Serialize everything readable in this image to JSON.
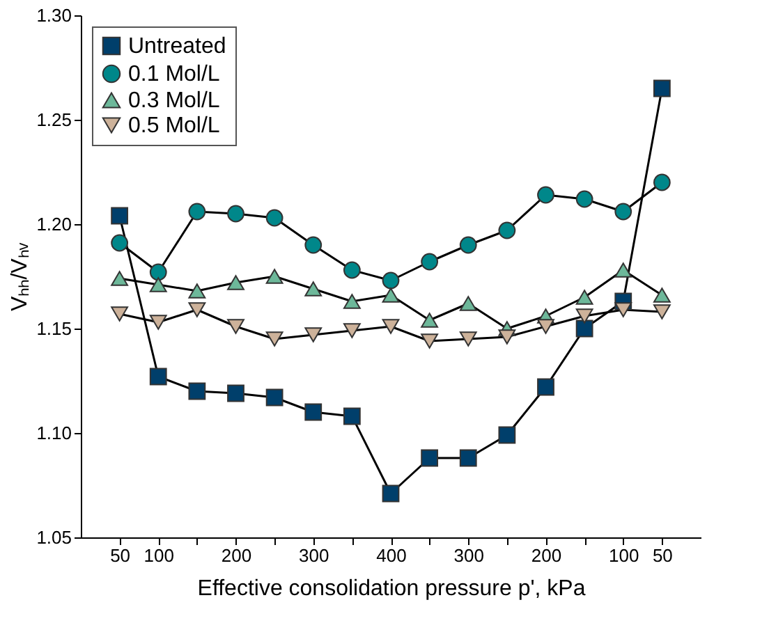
{
  "chart_data": {
    "type": "line",
    "xlabel": "Effective consolidation pressure p', kPa",
    "ylabel": "Vₕₕ/Vₕᵥ",
    "categories": [
      "50",
      "100",
      null,
      "200",
      null,
      "300",
      null,
      "400",
      null,
      "300",
      null,
      "200",
      null,
      "100",
      "50"
    ],
    "ylim": [
      1.05,
      1.3
    ],
    "yticks": [
      {
        "value": 1.05,
        "label": "1.05"
      },
      {
        "value": 1.1,
        "label": "1.10"
      },
      {
        "value": 1.15,
        "label": "1.15"
      },
      {
        "value": 1.2,
        "label": "1.20"
      },
      {
        "value": 1.25,
        "label": "1.25"
      },
      {
        "value": 1.3,
        "label": "1.30"
      }
    ],
    "grid": false,
    "legend": "top left",
    "series": [
      {
        "name": "Untreated",
        "color": "#003f6b",
        "marker": "square",
        "values": [
          1.204,
          1.127,
          1.12,
          1.119,
          1.117,
          1.11,
          1.108,
          1.071,
          1.088,
          1.088,
          1.099,
          1.122,
          1.15,
          1.163,
          1.265
        ]
      },
      {
        "name": "0.1 Mol/L",
        "color": "#00878a",
        "marker": "circle",
        "values": [
          1.191,
          1.177,
          1.206,
          1.205,
          1.203,
          1.19,
          1.178,
          1.173,
          1.182,
          1.19,
          1.197,
          1.214,
          1.212,
          1.206,
          1.22
        ]
      },
      {
        "name": "0.3 Mol/L",
        "color": "#6db89a",
        "marker": "triangle",
        "values": [
          1.174,
          1.171,
          1.168,
          1.172,
          1.175,
          1.169,
          1.163,
          1.166,
          1.154,
          1.162,
          1.15,
          1.156,
          1.165,
          1.178,
          1.166
        ]
      },
      {
        "name": "0.5 Mol/L",
        "color": "#cdb29a",
        "marker": "triangle-down",
        "values": [
          1.157,
          1.153,
          1.159,
          1.151,
          1.145,
          1.147,
          1.149,
          1.151,
          1.144,
          1.145,
          1.146,
          1.151,
          1.156,
          1.159,
          1.158
        ]
      }
    ]
  }
}
